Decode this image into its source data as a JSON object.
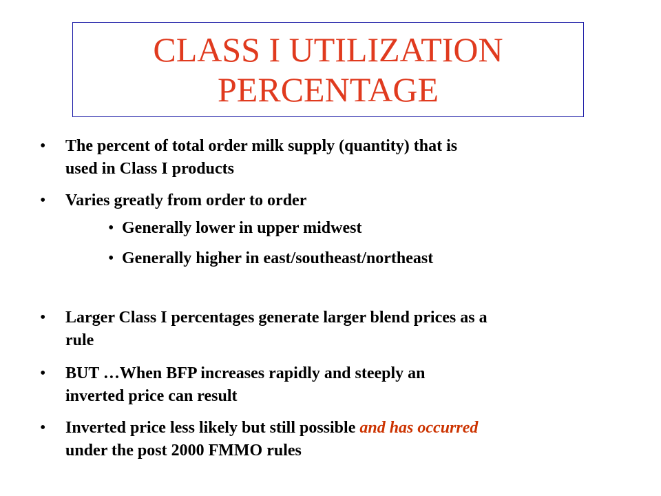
{
  "slide": {
    "title_line1": "CLASS I UTILIZATION",
    "title_line2": "PERCENTAGE",
    "bullets": [
      {
        "line1": "The percent of total order milk supply (quantity) that is",
        "line2": "used in Class I products"
      },
      {
        "line1": "Varies greatly from order to order"
      },
      {
        "line1": "Generally lower in upper midwest"
      },
      {
        "line1": "Generally higher in east/southeast/northeast"
      },
      {
        "line1": "Larger Class I percentages generate larger blend prices as a",
        "line2": "rule"
      },
      {
        "line1": "BUT …When BFP increases rapidly and steeply an",
        "line2": "inverted price can result"
      },
      {
        "line1_plain": "Inverted price less likely but still possible ",
        "line1_emph": "and has occurred",
        "line2": "under the post 2000 FMMO rules"
      }
    ],
    "bullet_glyph": "•",
    "colors": {
      "title": "#e03a1e",
      "title_border": "#1a1aa6",
      "emphasis": "#cc3300",
      "body_text": "#000000"
    }
  }
}
